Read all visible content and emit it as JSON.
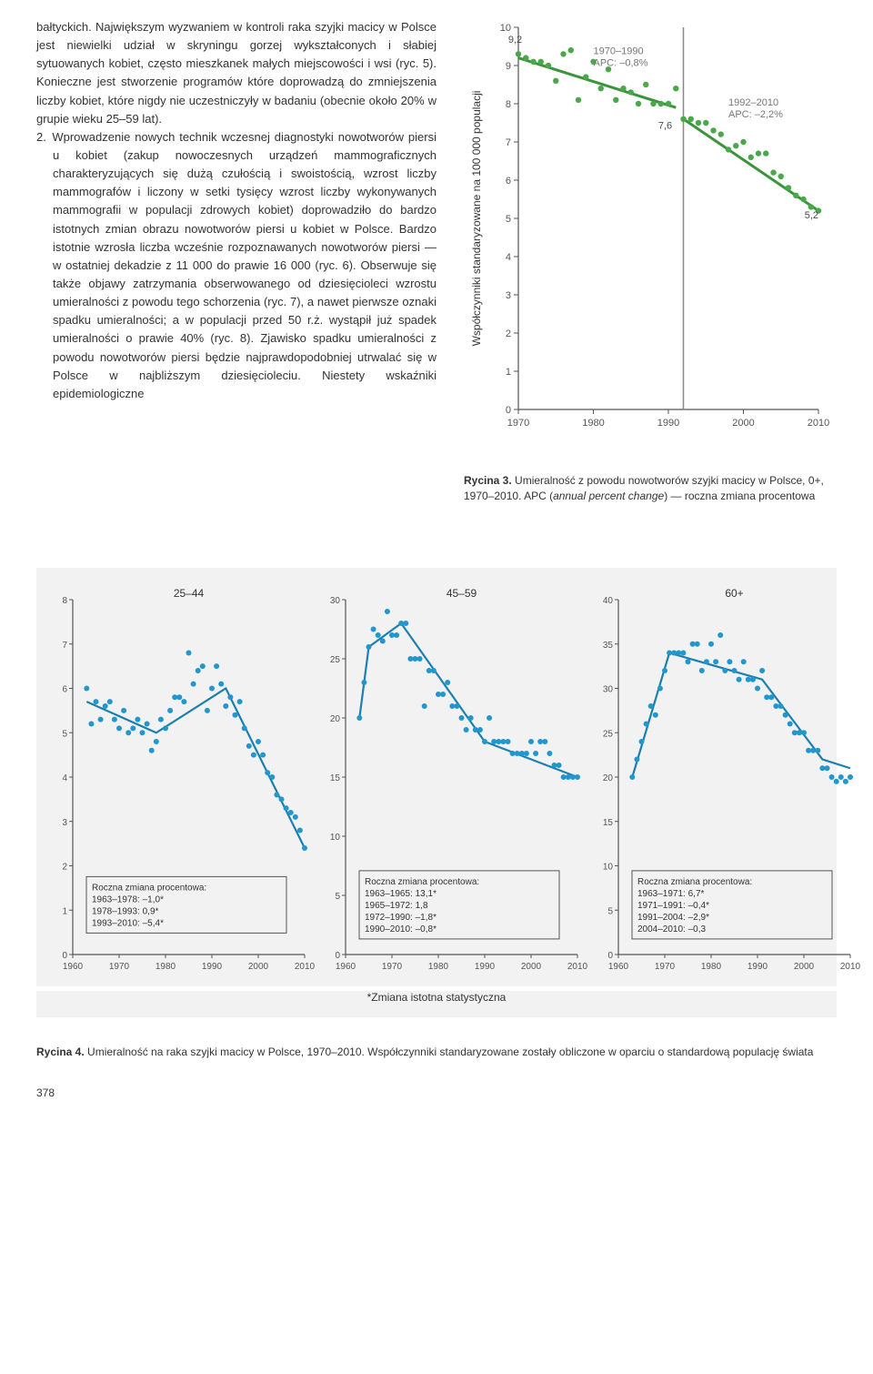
{
  "text": {
    "body": "bałtyckich. Największym wyzwaniem w kontroli raka szyjki macicy w Polsce jest niewielki udział w skryningu gorzej wykształconych i słabiej sytuowanych kobiet, często mieszkanek małych miejscowości i wsi (ryc. 5). Konieczne jest stworzenie programów które doprowadzą do zmniejszenia liczby kobiet, które nigdy nie uczestniczyły w badaniu (obecnie około 20% w grupie wieku 25–59 lat).",
    "item2": "2. Wprowadzenie nowych technik wczesnej diagnostyki nowotworów piersi u kobiet (zakup nowoczesnych urządzeń mammograficznych charakteryzujących się dużą czułością i swoistością, wzrost liczby mammografów i liczony w setki tysięcy wzrost liczby wykonywanych mammografii w populacji zdrowych kobiet) doprowadziło do bardzo istotnych zmian obrazu nowotworów piersi u kobiet w Polsce. Bardzo istotnie wzrosła liczba wcześnie rozpoznawanych nowotworów piersi — w ostatniej dekadzie z 11 000 do prawie 16 000 (ryc. 6). Obserwuje się także objawy zatrzymania obserwowanego od dziesięcioleci wzrostu umieralności z powodu tego schorzenia (ryc. 7), a nawet pierwsze oznaki spadku umieralności; a w populacji przed 50 r.ż. wystąpił już spadek umieralności o prawie 40% (ryc. 8). Zjawisko spadku umieralności z powodu nowotworów piersi będzie najprawdopodobniej utrwalać się w Polsce w najbliższym dziesięcioleciu. Niestety wskaźniki epidemiologiczne"
  },
  "fig3": {
    "caption_bold": "Rycina 3.",
    "caption_rest1": " Umieralność z powodu nowotworów szyjki macicy w Polsce, 0+, 1970–2010. APC (",
    "caption_italic": "annual percent change",
    "caption_rest2": ") — roczna zmiana procentowa",
    "y_label": "Współczynniki standaryzowane na 100 000 populacji",
    "x_ticks": [
      1970,
      1980,
      1990,
      2000,
      2010
    ],
    "y_ticks": [
      0,
      1,
      2,
      3,
      4,
      5,
      6,
      7,
      8,
      9,
      10
    ],
    "point_color": "#4aa84a",
    "line_color": "#3a943a",
    "vline_year": 1992,
    "vline_color": "#888888",
    "annot1_lines": [
      "1970–1990",
      "APC: –0,8%"
    ],
    "annot2_lines": [
      "1992–2010",
      "APC: –2,2%"
    ],
    "label_start": "9,2",
    "label_mid": "7,6",
    "label_end": "5,2",
    "points": [
      [
        1970,
        9.3
      ],
      [
        1971,
        9.2
      ],
      [
        1972,
        9.1
      ],
      [
        1973,
        9.1
      ],
      [
        1974,
        9.0
      ],
      [
        1975,
        8.6
      ],
      [
        1976,
        9.3
      ],
      [
        1977,
        9.4
      ],
      [
        1978,
        8.1
      ],
      [
        1979,
        8.7
      ],
      [
        1980,
        9.1
      ],
      [
        1981,
        8.4
      ],
      [
        1982,
        8.9
      ],
      [
        1983,
        8.1
      ],
      [
        1984,
        8.4
      ],
      [
        1985,
        8.3
      ],
      [
        1986,
        8.0
      ],
      [
        1987,
        8.5
      ],
      [
        1988,
        8.0
      ],
      [
        1989,
        8.0
      ],
      [
        1990,
        8.0
      ],
      [
        1991,
        8.4
      ],
      [
        1992,
        7.6
      ],
      [
        1993,
        7.6
      ],
      [
        1994,
        7.5
      ],
      [
        1995,
        7.5
      ],
      [
        1996,
        7.3
      ],
      [
        1997,
        7.2
      ],
      [
        1998,
        6.8
      ],
      [
        1999,
        6.9
      ],
      [
        2000,
        7.0
      ],
      [
        2001,
        6.6
      ],
      [
        2002,
        6.7
      ],
      [
        2003,
        6.7
      ],
      [
        2004,
        6.2
      ],
      [
        2005,
        6.1
      ],
      [
        2006,
        5.8
      ],
      [
        2007,
        5.6
      ],
      [
        2008,
        5.5
      ],
      [
        2009,
        5.3
      ],
      [
        2010,
        5.2
      ]
    ],
    "seg1_from": [
      1970,
      9.2
    ],
    "seg1_to": [
      1991,
      7.9
    ],
    "seg2_from": [
      1992,
      7.6
    ],
    "seg2_to": [
      2010,
      5.2
    ]
  },
  "panels": {
    "x_ticks": [
      1960,
      1970,
      1980,
      1990,
      2000,
      2010
    ],
    "point_color": "#2196cf",
    "line_color": "#1b7fb0",
    "title_box": "Roczna zmiana procentowa:",
    "panels": [
      {
        "title": "25–44",
        "y_ticks": [
          0,
          1,
          2,
          3,
          4,
          5,
          6,
          7,
          8
        ],
        "box_lines": [
          "1963–1978: –1,0*",
          "1978–1993: 0,9*",
          "1993–2010: –5,4*"
        ],
        "trend": [
          [
            1963,
            5.7
          ],
          [
            1978,
            5.0
          ],
          [
            1993,
            6.0
          ],
          [
            2010,
            2.4
          ]
        ],
        "points": [
          [
            1963,
            6.0
          ],
          [
            1964,
            5.2
          ],
          [
            1965,
            5.7
          ],
          [
            1966,
            5.3
          ],
          [
            1967,
            5.6
          ],
          [
            1968,
            5.7
          ],
          [
            1969,
            5.3
          ],
          [
            1970,
            5.1
          ],
          [
            1971,
            5.5
          ],
          [
            1972,
            5.0
          ],
          [
            1973,
            5.1
          ],
          [
            1974,
            5.3
          ],
          [
            1975,
            5.0
          ],
          [
            1976,
            5.2
          ],
          [
            1977,
            4.6
          ],
          [
            1978,
            4.8
          ],
          [
            1979,
            5.3
          ],
          [
            1980,
            5.1
          ],
          [
            1981,
            5.5
          ],
          [
            1982,
            5.8
          ],
          [
            1983,
            5.8
          ],
          [
            1984,
            5.7
          ],
          [
            1985,
            6.8
          ],
          [
            1986,
            6.1
          ],
          [
            1987,
            6.4
          ],
          [
            1988,
            6.5
          ],
          [
            1989,
            5.5
          ],
          [
            1990,
            6.0
          ],
          [
            1991,
            6.5
          ],
          [
            1992,
            6.1
          ],
          [
            1993,
            5.6
          ],
          [
            1994,
            5.8
          ],
          [
            1995,
            5.4
          ],
          [
            1996,
            5.7
          ],
          [
            1997,
            5.1
          ],
          [
            1998,
            4.7
          ],
          [
            1999,
            4.5
          ],
          [
            2000,
            4.8
          ],
          [
            2001,
            4.5
          ],
          [
            2002,
            4.1
          ],
          [
            2003,
            4.0
          ],
          [
            2004,
            3.6
          ],
          [
            2005,
            3.5
          ],
          [
            2006,
            3.3
          ],
          [
            2007,
            3.2
          ],
          [
            2008,
            3.1
          ],
          [
            2009,
            2.8
          ],
          [
            2010,
            2.4
          ]
        ]
      },
      {
        "title": "45–59",
        "y_ticks": [
          0,
          5,
          10,
          15,
          20,
          25,
          30
        ],
        "box_lines": [
          "1963–1965: 13,1*",
          "1965–1972: 1,8",
          "1972–1990: –1,8*",
          "1990–2010: –0,8*"
        ],
        "trend": [
          [
            1963,
            20
          ],
          [
            1965,
            26
          ],
          [
            1972,
            28
          ],
          [
            1990,
            18
          ],
          [
            2010,
            15
          ]
        ],
        "points": [
          [
            1963,
            20
          ],
          [
            1964,
            23
          ],
          [
            1965,
            26
          ],
          [
            1966,
            27.5
          ],
          [
            1967,
            27
          ],
          [
            1968,
            26.5
          ],
          [
            1969,
            29
          ],
          [
            1970,
            27
          ],
          [
            1971,
            27
          ],
          [
            1972,
            28
          ],
          [
            1973,
            28
          ],
          [
            1974,
            25
          ],
          [
            1975,
            25
          ],
          [
            1976,
            25
          ],
          [
            1977,
            21
          ],
          [
            1978,
            24
          ],
          [
            1979,
            24
          ],
          [
            1980,
            22
          ],
          [
            1981,
            22
          ],
          [
            1982,
            23
          ],
          [
            1983,
            21
          ],
          [
            1984,
            21
          ],
          [
            1985,
            20
          ],
          [
            1986,
            19
          ],
          [
            1987,
            20
          ],
          [
            1988,
            19
          ],
          [
            1989,
            19
          ],
          [
            1990,
            18
          ],
          [
            1991,
            20
          ],
          [
            1992,
            18
          ],
          [
            1993,
            18
          ],
          [
            1994,
            18
          ],
          [
            1995,
            18
          ],
          [
            1996,
            17
          ],
          [
            1997,
            17
          ],
          [
            1998,
            17
          ],
          [
            1999,
            17
          ],
          [
            2000,
            18
          ],
          [
            2001,
            17
          ],
          [
            2002,
            18
          ],
          [
            2003,
            18
          ],
          [
            2004,
            17
          ],
          [
            2005,
            16
          ],
          [
            2006,
            16
          ],
          [
            2007,
            15
          ],
          [
            2008,
            15
          ],
          [
            2009,
            15
          ],
          [
            2010,
            15
          ]
        ]
      },
      {
        "title": "60+",
        "y_ticks": [
          0,
          5,
          10,
          15,
          20,
          25,
          30,
          35,
          40
        ],
        "box_lines": [
          "1963–1971: 6,7*",
          "1971–1991: –0,4*",
          "1991–2004: –2,9*",
          "2004–2010: –0,3"
        ],
        "trend": [
          [
            1963,
            20
          ],
          [
            1971,
            34
          ],
          [
            1991,
            31
          ],
          [
            2004,
            22
          ],
          [
            2010,
            21
          ]
        ],
        "points": [
          [
            1963,
            20
          ],
          [
            1964,
            22
          ],
          [
            1965,
            24
          ],
          [
            1966,
            26
          ],
          [
            1967,
            28
          ],
          [
            1968,
            27
          ],
          [
            1969,
            30
          ],
          [
            1970,
            32
          ],
          [
            1971,
            34
          ],
          [
            1972,
            34
          ],
          [
            1973,
            34
          ],
          [
            1974,
            34
          ],
          [
            1975,
            33
          ],
          [
            1976,
            35
          ],
          [
            1977,
            35
          ],
          [
            1978,
            32
          ],
          [
            1979,
            33
          ],
          [
            1980,
            35
          ],
          [
            1981,
            33
          ],
          [
            1982,
            36
          ],
          [
            1983,
            32
          ],
          [
            1984,
            33
          ],
          [
            1985,
            32
          ],
          [
            1986,
            31
          ],
          [
            1987,
            33
          ],
          [
            1988,
            31
          ],
          [
            1989,
            31
          ],
          [
            1990,
            30
          ],
          [
            1991,
            32
          ],
          [
            1992,
            29
          ],
          [
            1993,
            29
          ],
          [
            1994,
            28
          ],
          [
            1995,
            28
          ],
          [
            1996,
            27
          ],
          [
            1997,
            26
          ],
          [
            1998,
            25
          ],
          [
            1999,
            25
          ],
          [
            2000,
            25
          ],
          [
            2001,
            23
          ],
          [
            2002,
            23
          ],
          [
            2003,
            23
          ],
          [
            2004,
            21
          ],
          [
            2005,
            21
          ],
          [
            2006,
            20
          ],
          [
            2007,
            19.5
          ],
          [
            2008,
            20
          ],
          [
            2009,
            19.5
          ],
          [
            2010,
            20
          ]
        ]
      }
    ]
  },
  "footnote": "*Zmiana istotna statystyczna",
  "fig4": {
    "bold": "Rycina 4.",
    "rest": " Umieralność na raka szyjki macicy w Polsce, 1970–2010. Współczynniki standaryzowane zostały obliczone w oparciu o standardową populację świata"
  },
  "page_number": "378",
  "colors": {
    "axis": "#555555",
    "grid_bg": "#f2f2f2",
    "annot_text": "#777777",
    "fig3_label": "#4a4a4a"
  }
}
